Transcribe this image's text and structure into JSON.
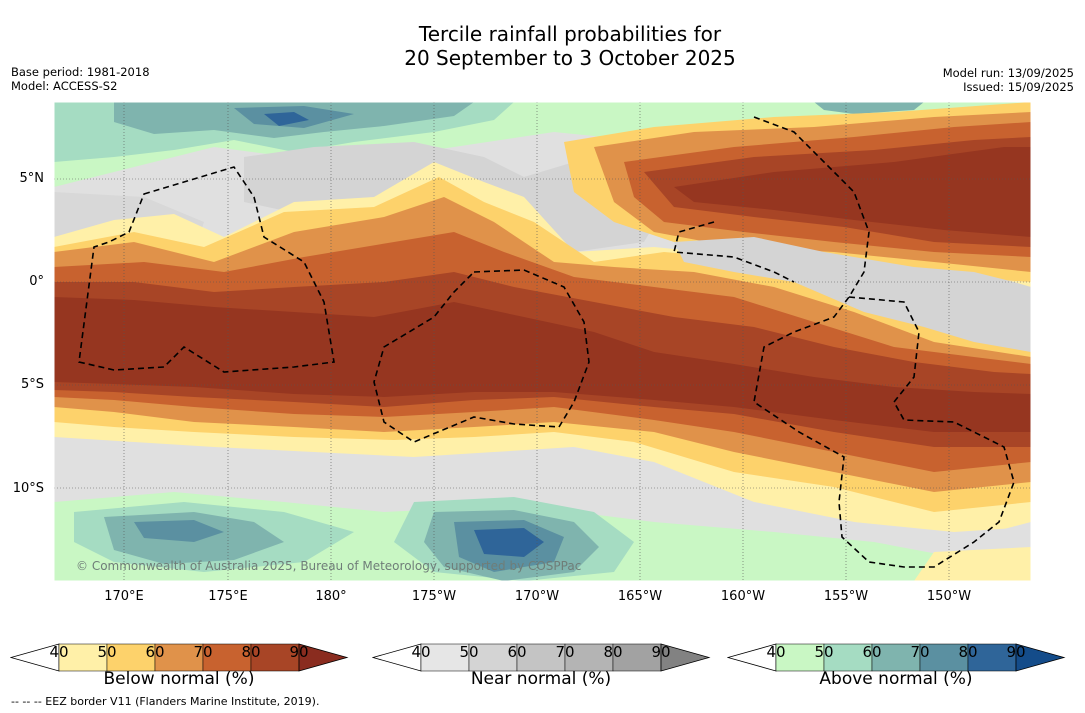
{
  "title_line1": "Tercile rainfall probabilities for",
  "title_line2": "20 September to 3 October 2025",
  "meta_left": {
    "base_period": "Base period: 1981-2018",
    "model": "Model: ACCESS-S2"
  },
  "meta_right": {
    "model_run": "Model run: 13/09/2025",
    "issued": "Issued: 15/09/2025"
  },
  "map": {
    "latitude_labels": [
      "5°N",
      "0°",
      "5°S",
      "10°S"
    ],
    "longitude_labels": [
      "170°E",
      "175°E",
      "180°",
      "175°W",
      "170°W",
      "165°W",
      "160°W",
      "155°W",
      "150°W"
    ],
    "credit": "© Commonwealth of Australia 2025, Bureau of Meteorology, supported by COSPPac",
    "eez_line_color": "#000000"
  },
  "colorbars": [
    {
      "title": "Below normal (%)",
      "ticks": [
        "40",
        "50",
        "60",
        "70",
        "80",
        "90"
      ],
      "colors": [
        "#ffffff",
        "#fff0a8",
        "#fdd26b",
        "#e0924a",
        "#c8622f",
        "#a84526",
        "#8a2c1f"
      ]
    },
    {
      "title": "Near normal (%)",
      "ticks": [
        "40",
        "50",
        "60",
        "70",
        "80",
        "90"
      ],
      "colors": [
        "#ffffff",
        "#e6e6e6",
        "#d4d4d4",
        "#c4c4c4",
        "#b4b4b4",
        "#a2a2a2",
        "#828282"
      ]
    },
    {
      "title": "Above normal (%)",
      "ticks": [
        "40",
        "50",
        "60",
        "70",
        "80",
        "90"
      ],
      "colors": [
        "#ffffff",
        "#c9f7c4",
        "#a5dcc2",
        "#7fb4ae",
        "#5b90a1",
        "#2f6599",
        "#144c8a"
      ]
    }
  ],
  "footnote": "-- -- -- EEZ border V11 (Flanders Marine Institute, 2019)."
}
